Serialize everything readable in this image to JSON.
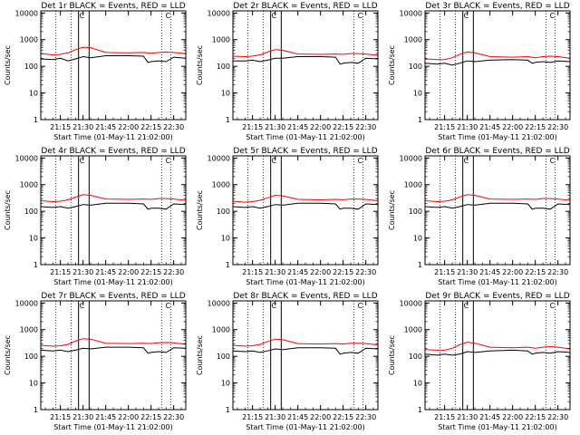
{
  "shared": {
    "ylabel": "Counts/sec",
    "xlabel": "Start Time (01-May-11 21:02:00)",
    "y_ticks": [
      "1",
      "10",
      "100",
      "1000",
      "10000"
    ],
    "x_ticks": [
      "21:15",
      "21:30",
      "21:45",
      "22:00",
      "22:15",
      "22:30"
    ],
    "series_colors": {
      "events": "#000000",
      "lld": "#ff0000"
    },
    "marker_glyph": "C"
  },
  "chart_data": [
    {
      "type": "line",
      "title": "Det 1r BLACK = Events, RED = LLD",
      "xlim": [
        "21:02",
        "22:38"
      ],
      "ylim": [
        1,
        12000
      ],
      "yscale": "log",
      "series": [
        {
          "x": [
            "21:02",
            "21:10",
            "21:15",
            "21:20",
            "21:25",
            "21:30",
            "21:35",
            "21:45",
            "22:00",
            "22:10",
            "22:13",
            "22:15",
            "22:20",
            "22:25",
            "22:30",
            "22:38"
          ],
          "values": [
            190,
            180,
            200,
            160,
            190,
            230,
            210,
            250,
            250,
            240,
            140,
            150,
            160,
            150,
            220,
            200
          ]
        },
        {
          "x": [
            "21:02",
            "21:10",
            "21:15",
            "21:20",
            "21:25",
            "21:30",
            "21:35",
            "21:45",
            "22:00",
            "22:10",
            "22:15",
            "22:20",
            "22:25",
            "22:30",
            "22:38"
          ],
          "values": [
            300,
            270,
            280,
            320,
            420,
            520,
            500,
            330,
            320,
            330,
            310,
            330,
            340,
            330,
            300
          ]
        }
      ]
    },
    {
      "type": "line",
      "title": "Det 2r BLACK = Events, RED = LLD",
      "xlim": [
        "21:02",
        "22:38"
      ],
      "ylim": [
        1,
        12000
      ],
      "yscale": "log",
      "series": [
        {
          "x": [
            "21:02",
            "21:10",
            "21:15",
            "21:20",
            "21:25",
            "21:30",
            "21:35",
            "21:45",
            "22:00",
            "22:10",
            "22:13",
            "22:15",
            "22:20",
            "22:25",
            "22:30",
            "22:38"
          ],
          "values": [
            160,
            160,
            170,
            150,
            170,
            200,
            200,
            230,
            230,
            220,
            120,
            130,
            140,
            130,
            200,
            190
          ]
        },
        {
          "x": [
            "21:02",
            "21:10",
            "21:15",
            "21:20",
            "21:25",
            "21:30",
            "21:35",
            "21:45",
            "22:00",
            "22:10",
            "22:15",
            "22:20",
            "22:25",
            "22:30",
            "22:38"
          ],
          "values": [
            240,
            230,
            240,
            270,
            340,
            420,
            400,
            290,
            280,
            290,
            280,
            300,
            300,
            290,
            260
          ]
        }
      ]
    },
    {
      "type": "line",
      "title": "Det 3r BLACK = Events, RED = LLD",
      "xlim": [
        "21:02",
        "22:38"
      ],
      "ylim": [
        1,
        12000
      ],
      "yscale": "log",
      "series": [
        {
          "x": [
            "21:02",
            "21:10",
            "21:15",
            "21:20",
            "21:25",
            "21:30",
            "21:35",
            "21:45",
            "22:00",
            "22:10",
            "22:13",
            "22:15",
            "22:20",
            "22:25",
            "22:30",
            "22:38"
          ],
          "values": [
            130,
            120,
            130,
            110,
            130,
            160,
            150,
            170,
            180,
            170,
            130,
            140,
            150,
            140,
            160,
            150
          ]
        },
        {
          "x": [
            "21:02",
            "21:10",
            "21:15",
            "21:20",
            "21:25",
            "21:30",
            "21:35",
            "21:45",
            "22:00",
            "22:10",
            "22:15",
            "22:20",
            "22:25",
            "22:30",
            "22:38"
          ],
          "values": [
            190,
            180,
            180,
            210,
            280,
            350,
            320,
            230,
            220,
            230,
            210,
            230,
            240,
            230,
            200
          ]
        }
      ]
    },
    {
      "type": "line",
      "title": "Det 4r BLACK = Events, RED = LLD",
      "xlim": [
        "21:02",
        "22:38"
      ],
      "ylim": [
        1,
        12000
      ],
      "yscale": "log",
      "series": [
        {
          "x": [
            "21:02",
            "21:10",
            "21:15",
            "21:20",
            "21:25",
            "21:30",
            "21:35",
            "21:45",
            "22:00",
            "22:10",
            "22:13",
            "22:15",
            "22:20",
            "22:25",
            "22:30",
            "22:38"
          ],
          "values": [
            150,
            140,
            150,
            130,
            150,
            180,
            170,
            200,
            200,
            190,
            120,
            130,
            130,
            120,
            190,
            180
          ]
        },
        {
          "x": [
            "21:02",
            "21:10",
            "21:15",
            "21:20",
            "21:25",
            "21:30",
            "21:35",
            "21:45",
            "22:00",
            "22:10",
            "22:15",
            "22:20",
            "22:25",
            "22:30",
            "22:38"
          ],
          "values": [
            250,
            230,
            240,
            270,
            340,
            420,
            400,
            290,
            280,
            290,
            280,
            300,
            300,
            290,
            260
          ]
        }
      ]
    },
    {
      "type": "line",
      "title": "Det 5r BLACK = Events, RED = LLD",
      "xlim": [
        "21:02",
        "22:38"
      ],
      "ylim": [
        1,
        12000
      ],
      "yscale": "log",
      "series": [
        {
          "x": [
            "21:02",
            "21:10",
            "21:15",
            "21:20",
            "21:25",
            "21:30",
            "21:35",
            "21:45",
            "22:00",
            "22:10",
            "22:13",
            "22:15",
            "22:20",
            "22:25",
            "22:30",
            "22:38"
          ],
          "values": [
            150,
            140,
            150,
            130,
            150,
            180,
            170,
            200,
            200,
            190,
            120,
            130,
            130,
            120,
            190,
            180
          ]
        },
        {
          "x": [
            "21:02",
            "21:10",
            "21:15",
            "21:20",
            "21:25",
            "21:30",
            "21:35",
            "21:45",
            "22:00",
            "22:10",
            "22:15",
            "22:20",
            "22:25",
            "22:30",
            "22:38"
          ],
          "values": [
            240,
            220,
            230,
            260,
            320,
            400,
            380,
            280,
            270,
            280,
            270,
            290,
            290,
            280,
            250
          ]
        }
      ]
    },
    {
      "type": "line",
      "title": "Det 6r BLACK = Events, RED = LLD",
      "xlim": [
        "21:02",
        "22:38"
      ],
      "ylim": [
        1,
        12000
      ],
      "yscale": "log",
      "series": [
        {
          "x": [
            "21:02",
            "21:10",
            "21:15",
            "21:20",
            "21:25",
            "21:30",
            "21:35",
            "21:45",
            "22:00",
            "22:10",
            "22:13",
            "22:15",
            "22:20",
            "22:25",
            "22:30",
            "22:38"
          ],
          "values": [
            150,
            140,
            150,
            130,
            150,
            180,
            170,
            200,
            200,
            190,
            120,
            130,
            130,
            120,
            190,
            180
          ]
        },
        {
          "x": [
            "21:02",
            "21:10",
            "21:15",
            "21:20",
            "21:25",
            "21:30",
            "21:35",
            "21:45",
            "22:00",
            "22:10",
            "22:15",
            "22:20",
            "22:25",
            "22:30",
            "22:38"
          ],
          "values": [
            250,
            230,
            240,
            270,
            340,
            420,
            400,
            290,
            280,
            290,
            280,
            300,
            300,
            290,
            260
          ]
        }
      ]
    },
    {
      "type": "line",
      "title": "Det 7r BLACK = Events, RED = LLD",
      "xlim": [
        "21:02",
        "22:38"
      ],
      "ylim": [
        1,
        12000
      ],
      "yscale": "log",
      "series": [
        {
          "x": [
            "21:02",
            "21:10",
            "21:15",
            "21:20",
            "21:25",
            "21:30",
            "21:35",
            "21:45",
            "22:00",
            "22:10",
            "22:13",
            "22:15",
            "22:20",
            "22:25",
            "22:30",
            "22:38"
          ],
          "values": [
            170,
            160,
            170,
            150,
            170,
            200,
            190,
            220,
            220,
            210,
            130,
            140,
            150,
            140,
            210,
            200
          ]
        },
        {
          "x": [
            "21:02",
            "21:10",
            "21:15",
            "21:20",
            "21:25",
            "21:30",
            "21:35",
            "21:45",
            "22:00",
            "22:10",
            "22:15",
            "22:20",
            "22:25",
            "22:30",
            "22:38"
          ],
          "values": [
            260,
            240,
            250,
            280,
            370,
            460,
            440,
            310,
            300,
            310,
            300,
            320,
            330,
            320,
            280
          ]
        }
      ]
    },
    {
      "type": "line",
      "title": "Det 8r BLACK = Events, RED = LLD",
      "xlim": [
        "21:02",
        "22:38"
      ],
      "ylim": [
        1,
        12000
      ],
      "yscale": "log",
      "series": [
        {
          "x": [
            "21:02",
            "21:10",
            "21:15",
            "21:20",
            "21:25",
            "21:30",
            "21:35",
            "21:45",
            "22:00",
            "22:10",
            "22:13",
            "22:15",
            "22:20",
            "22:25",
            "22:30",
            "22:38"
          ],
          "values": [
            160,
            150,
            160,
            140,
            160,
            190,
            180,
            210,
            210,
            200,
            120,
            130,
            140,
            130,
            200,
            190
          ]
        },
        {
          "x": [
            "21:02",
            "21:10",
            "21:15",
            "21:20",
            "21:25",
            "21:30",
            "21:35",
            "21:45",
            "22:00",
            "22:10",
            "22:15",
            "22:20",
            "22:25",
            "22:30",
            "22:38"
          ],
          "values": [
            260,
            240,
            250,
            280,
            360,
            440,
            420,
            300,
            290,
            300,
            290,
            310,
            310,
            300,
            270
          ]
        }
      ]
    },
    {
      "type": "line",
      "title": "Det 9r BLACK = Events, RED = LLD",
      "xlim": [
        "21:02",
        "22:38"
      ],
      "ylim": [
        1,
        12000
      ],
      "yscale": "log",
      "series": [
        {
          "x": [
            "21:02",
            "21:10",
            "21:15",
            "21:20",
            "21:25",
            "21:30",
            "21:35",
            "21:45",
            "22:00",
            "22:10",
            "22:13",
            "22:15",
            "22:20",
            "22:25",
            "22:30",
            "22:38"
          ],
          "values": [
            120,
            110,
            120,
            110,
            120,
            150,
            140,
            160,
            170,
            160,
            120,
            130,
            140,
            130,
            150,
            140
          ]
        },
        {
          "x": [
            "21:02",
            "21:10",
            "21:15",
            "21:20",
            "21:25",
            "21:30",
            "21:35",
            "21:45",
            "22:00",
            "22:10",
            "22:15",
            "22:20",
            "22:25",
            "22:30",
            "22:38"
          ],
          "values": [
            180,
            170,
            170,
            200,
            270,
            340,
            310,
            220,
            210,
            220,
            200,
            220,
            230,
            220,
            190
          ]
        }
      ]
    }
  ]
}
